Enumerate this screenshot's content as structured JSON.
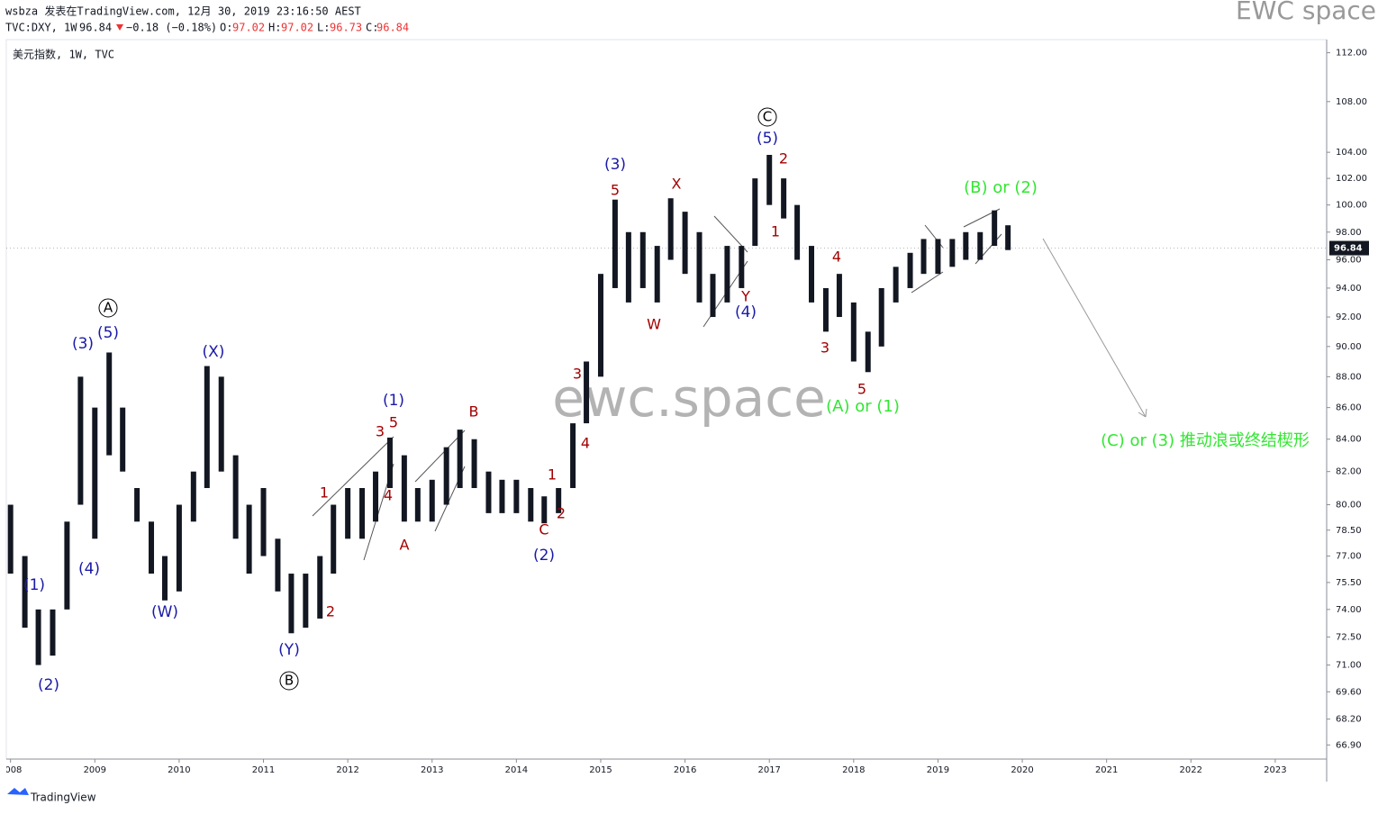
{
  "header": {
    "author_line": "wsbza 发表在TradingView.com, 12月 30, 2019 23:16:50 AEST",
    "symbol": "TVC:DXY, 1W",
    "last": "96.84",
    "change": "−0.18 (−0.18%)",
    "open_label": "O:",
    "open": "97.02",
    "high_label": "H:",
    "high": "97.02",
    "low_label": "L:",
    "low": "96.73",
    "close_label": "C:",
    "close": "96.84",
    "brand": "EWC space",
    "legend": "美元指数, 1W, TVC"
  },
  "watermark": "ewc.space",
  "footer": "TradingView",
  "chart_data": {
    "type": "range_bar",
    "color": "#131722",
    "log_scale": true,
    "x": [
      2008.0,
      2008.17,
      2008.33,
      2008.5,
      2008.67,
      2008.83,
      2009.0,
      2009.17,
      2009.33,
      2009.5,
      2009.67,
      2009.83,
      2010.0,
      2010.17,
      2010.33,
      2010.5,
      2010.67,
      2010.83,
      2011.0,
      2011.17,
      2011.33,
      2011.5,
      2011.67,
      2011.83,
      2012.0,
      2012.17,
      2012.33,
      2012.5,
      2012.67,
      2012.83,
      2013.0,
      2013.17,
      2013.33,
      2013.5,
      2013.67,
      2013.83,
      2014.0,
      2014.17,
      2014.33,
      2014.5,
      2014.67,
      2014.83,
      2015.0,
      2015.17,
      2015.33,
      2015.5,
      2015.67,
      2015.83,
      2016.0,
      2016.17,
      2016.33,
      2016.5,
      2016.67,
      2016.83,
      2017.0,
      2017.17,
      2017.33,
      2017.5,
      2017.67,
      2017.83,
      2018.0,
      2018.17,
      2018.33,
      2018.5,
      2018.67,
      2018.83,
      2019.0,
      2019.17,
      2019.33,
      2019.5,
      2019.67,
      2019.83
    ],
    "high": [
      80,
      77,
      74,
      74,
      79,
      88,
      86,
      89.6,
      86,
      81,
      79,
      77,
      80,
      82,
      88.7,
      88,
      83,
      80,
      81,
      78,
      76,
      76,
      77,
      80,
      81,
      81,
      82,
      84.1,
      83,
      81,
      81.5,
      83.5,
      84.6,
      84,
      82,
      81.5,
      81.5,
      81,
      80.5,
      81,
      85,
      89,
      95,
      100.4,
      98,
      98,
      97,
      100.5,
      99.5,
      98,
      95,
      97,
      97,
      102,
      103.8,
      102,
      100,
      97,
      94,
      95,
      93,
      91,
      94,
      95.5,
      96.5,
      97.5,
      97.5,
      97.5,
      98,
      98,
      99.6,
      98.5
    ],
    "low": [
      76,
      73,
      71,
      71.5,
      74,
      80,
      78,
      83,
      82,
      79,
      76,
      74.5,
      75,
      79,
      81,
      82,
      78,
      76,
      77,
      75,
      72.7,
      73,
      73.5,
      76,
      78,
      78,
      79,
      81,
      79,
      79,
      79,
      80,
      81,
      81,
      79.5,
      79.5,
      79.5,
      79,
      78.9,
      79.5,
      81,
      85,
      88,
      94,
      93,
      94,
      93,
      96,
      95,
      93,
      92,
      93,
      94,
      97,
      100,
      99,
      96,
      93,
      91,
      92,
      89,
      88.3,
      90,
      93,
      94,
      95,
      95,
      95.5,
      96,
      96,
      97,
      96.7
    ],
    "last_price": 96.84,
    "last_label": "96.84",
    "xlim": [
      2007.95,
      2023.61
    ],
    "xticks": [
      2008,
      2009,
      2010,
      2011,
      2012,
      2013,
      2014,
      2015,
      2016,
      2017,
      2018,
      2019,
      2020,
      2021,
      2022,
      2023
    ],
    "ylim": [
      66.2,
      113.1
    ],
    "yticks": [
      {
        "value": 112,
        "label": "112.00"
      },
      {
        "value": 108,
        "label": "108.00"
      },
      {
        "value": 104,
        "label": "104.00"
      },
      {
        "value": 102,
        "label": "102.00"
      },
      {
        "value": 100,
        "label": "100.00"
      },
      {
        "value": 98,
        "label": "98.00"
      },
      {
        "value": 96,
        "label": "96.00"
      },
      {
        "value": 94,
        "label": "94.00"
      },
      {
        "value": 92,
        "label": "92.00"
      },
      {
        "value": 90,
        "label": "90.00"
      },
      {
        "value": 88,
        "label": "88.00"
      },
      {
        "value": 86,
        "label": "86.00"
      },
      {
        "value": 84,
        "label": "84.00"
      },
      {
        "value": 82,
        "label": "82.00"
      },
      {
        "value": 80,
        "label": "80.00"
      },
      {
        "value": 78.5,
        "label": "78.50"
      },
      {
        "value": 77,
        "label": "77.00"
      },
      {
        "value": 75.5,
        "label": "75.50"
      },
      {
        "value": 74,
        "label": "74.00"
      },
      {
        "value": 72.5,
        "label": "72.50"
      },
      {
        "value": 71,
        "label": "71.00"
      },
      {
        "value": 69.6,
        "label": "69.60"
      },
      {
        "value": 68.2,
        "label": "68.20"
      },
      {
        "value": 66.9,
        "label": "66.90"
      }
    ],
    "annotations": {
      "blue": [
        "(1)",
        "(2)",
        "(3)",
        "(4)",
        "(5)",
        "(W)",
        "(X)",
        "(Y)",
        "(1)",
        "(2)",
        "(3)",
        "(4)",
        "(5)"
      ],
      "circled": [
        "A",
        "B",
        "C"
      ],
      "red": [
        "1",
        "2",
        "3",
        "5",
        "4",
        "A",
        "B",
        "C",
        "1",
        "2",
        "3",
        "4",
        "5",
        "W",
        "X",
        "Y",
        "1",
        "2",
        "3",
        "4",
        "5"
      ],
      "green": [
        "(A) or (1)",
        "(B) or (2)",
        "(C) or (3)  推动浪或终结楔形"
      ]
    }
  }
}
